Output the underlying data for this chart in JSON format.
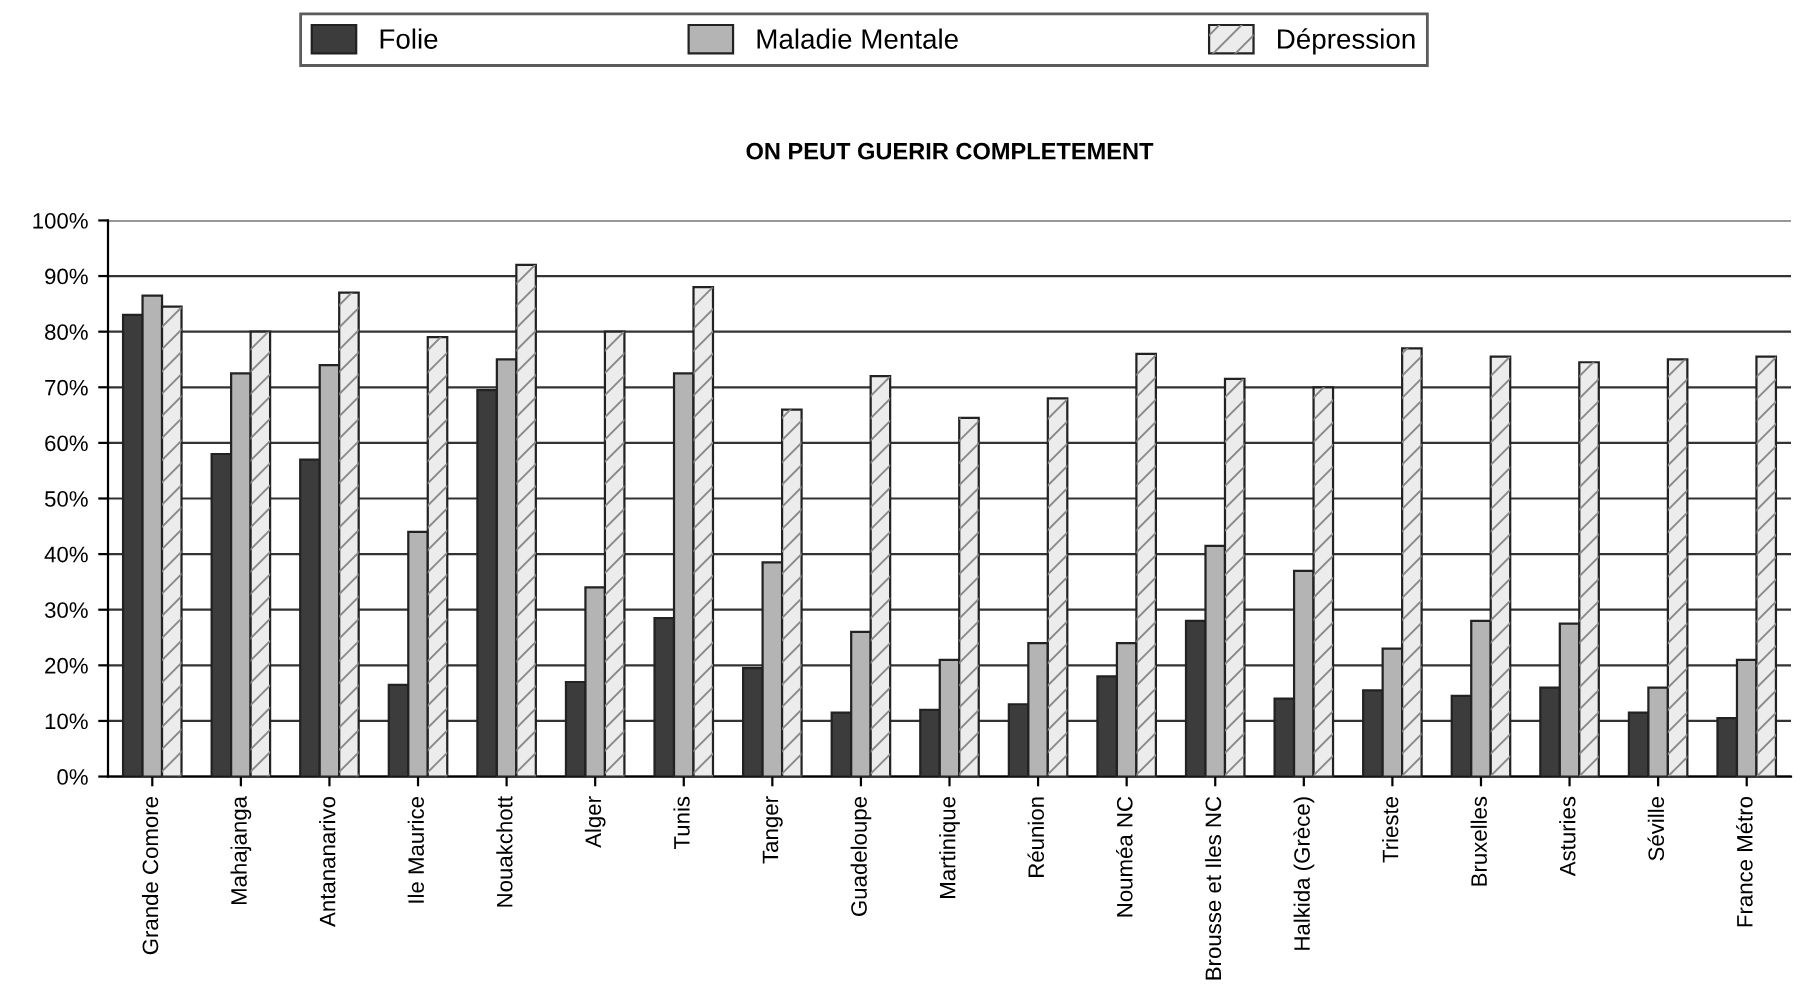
{
  "chart_data": {
    "type": "bar",
    "title": "ON PEUT GUERIR COMPLETEMENT",
    "categories": [
      "Grande Comore",
      "Mahajanga",
      "Antananarivo",
      "Ile Maurice",
      "Nouakchott",
      "Alger",
      "Tunis",
      "Tanger",
      "Guadeloupe",
      "Martinique",
      "Réunion",
      "Nouméa NC",
      "Brousse et Iles NC",
      "Halkida (Grèce)",
      "Trieste",
      "Bruxelles",
      "Asturies",
      "Séville",
      "France Métro"
    ],
    "series": [
      {
        "name": "Folie",
        "color": "#3c3c3c",
        "values": [
          83,
          58,
          57,
          16.5,
          69.5,
          17,
          28.5,
          19.5,
          11.5,
          12,
          13,
          18,
          28,
          14,
          15.5,
          14.5,
          16,
          11.5,
          10.5
        ]
      },
      {
        "name": "Maladie Mentale",
        "color": "#b4b4b4",
        "values": [
          86.5,
          72.5,
          74,
          44,
          75,
          34,
          72.5,
          38.5,
          26,
          21,
          24,
          24,
          41.5,
          37,
          23,
          28,
          27.5,
          16,
          21
        ]
      },
      {
        "name": "Dépression",
        "color": "#ececec",
        "values": [
          84.5,
          80,
          87,
          79,
          92,
          80,
          88,
          66,
          72,
          64.5,
          68,
          76,
          71.5,
          70,
          77,
          75.5,
          74.5,
          75,
          75.5
        ]
      }
    ],
    "ylim": [
      0,
      100
    ],
    "yticks": [
      {
        "value": 0,
        "label": "0%"
      },
      {
        "value": 10,
        "label": "10%"
      },
      {
        "value": 20,
        "label": "20%"
      },
      {
        "value": 30,
        "label": "30%"
      },
      {
        "value": 40,
        "label": "40%"
      },
      {
        "value": 50,
        "label": "50%"
      },
      {
        "value": 60,
        "label": "60%"
      },
      {
        "value": 70,
        "label": "70%"
      },
      {
        "value": 80,
        "label": "80%"
      },
      {
        "value": 90,
        "label": "90%"
      },
      {
        "value": 100,
        "label": "100%"
      }
    ],
    "grid": "y",
    "legend": "top"
  }
}
